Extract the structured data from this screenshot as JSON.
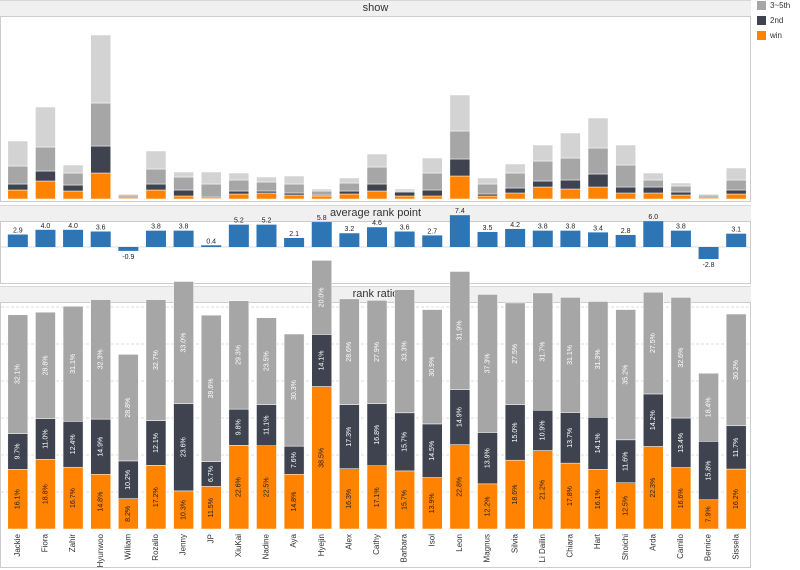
{
  "legend": {
    "items": [
      {
        "label": "3~5th",
        "color": "#a6a6a6"
      },
      {
        "label": "2nd",
        "color": "#3f4350"
      },
      {
        "label": "win",
        "color": "#ff8200"
      }
    ]
  },
  "chart_data": [
    {
      "type": "bar",
      "title": "show",
      "stacked": true,
      "ylabel": "",
      "categories": [
        "Jackie",
        "Fiora",
        "Zahir",
        "Hyunwoo",
        "William",
        "Rozalio",
        "Jenny",
        "JP",
        "XiuKai",
        "Nadine",
        "Aya",
        "Hyejin",
        "Alex",
        "Cathy",
        "Barbara",
        "Isol",
        "Leon",
        "Magnus",
        "Silvia",
        "Li Dailin",
        "Chiara",
        "Hart",
        "Shoichi",
        "Arda",
        "Camilo",
        "Bernice",
        "Sissela"
      ],
      "series": [
        {
          "name": "win",
          "color": "#ff8200",
          "values": [
            9,
            18,
            8,
            26,
            1,
            9,
            3,
            1,
            5,
            6,
            4,
            3,
            5,
            8,
            3,
            3,
            23,
            3,
            6,
            12,
            10,
            12,
            6,
            6,
            4,
            1,
            5
          ]
        },
        {
          "name": "2nd",
          "color": "#3f4350",
          "values": [
            6,
            10,
            6,
            27,
            1,
            6,
            6,
            1,
            3,
            2,
            2,
            1,
            3,
            7,
            4,
            6,
            17,
            2,
            5,
            6,
            9,
            13,
            6,
            6,
            3,
            1,
            4
          ]
        },
        {
          "name": "3~5th",
          "color": "#a6a6a6",
          "values": [
            18,
            24,
            12,
            43,
            2,
            15,
            13,
            13,
            11,
            9,
            9,
            4,
            8,
            17,
            1,
            17,
            28,
            10,
            15,
            20,
            22,
            26,
            22,
            7,
            6,
            2,
            10
          ]
        },
        {
          "name": "",
          "color": "#d3d3d3",
          "values": [
            25,
            40,
            8,
            68,
            1,
            18,
            5,
            12,
            7,
            5,
            8,
            2,
            5,
            13,
            2,
            15,
            36,
            6,
            9,
            16,
            25,
            30,
            20,
            7,
            3,
            1,
            12
          ]
        }
      ]
    },
    {
      "type": "bar",
      "title": "average rank point",
      "categories": [
        "Jackie",
        "Fiora",
        "Zahir",
        "Hyunwoo",
        "William",
        "Rozalio",
        "Jenny",
        "JP",
        "XiuKai",
        "Nadine",
        "Aya",
        "Hyejin",
        "Alex",
        "Cathy",
        "Barbara",
        "Isol",
        "Leon",
        "Magnus",
        "Silvia",
        "Li Dailin",
        "Chiara",
        "Hart",
        "Shoichi",
        "Arda",
        "Camilo",
        "Bernice",
        "Sissela"
      ],
      "values": [
        2.9,
        4.0,
        4.0,
        3.6,
        -0.9,
        3.8,
        3.8,
        0.4,
        5.2,
        5.2,
        2.1,
        5.8,
        3.2,
        4.6,
        3.6,
        2.7,
        7.4,
        3.5,
        4.2,
        3.8,
        3.8,
        3.4,
        2.8,
        6.0,
        3.8,
        -2.8,
        3.1
      ],
      "labels": [
        "2.9",
        "4.0",
        "4.0",
        "3.6",
        "-0.9",
        "3.8",
        "3.8",
        "0.4",
        "5.2",
        "5.2",
        "2.1",
        "5.8",
        "3.2",
        "4.6",
        "3.6",
        "2.7",
        "7.4",
        "3.5",
        "4.2",
        "3.8",
        "3.8",
        "3.4",
        "2.8",
        "6.0",
        "3.8",
        "-2.8",
        "3.1"
      ],
      "color": "#2e75b6"
    },
    {
      "type": "bar",
      "title": "rank ratio",
      "stacked": true,
      "categories": [
        "Jackie",
        "Fiora",
        "Zahir",
        "Hyunwoo",
        "William",
        "Rozalio",
        "Jenny",
        "JP",
        "XiuKai",
        "Nadine",
        "Aya",
        "Hyejin",
        "Alex",
        "Cathy",
        "Barbara",
        "Isol",
        "Leon",
        "Magnus",
        "Silvia",
        "Li Dailin",
        "Chiara",
        "Hart",
        "Shoichi",
        "Arda",
        "Camilo",
        "Bernice",
        "Sissela"
      ],
      "series": [
        {
          "name": "win",
          "color": "#ff8200",
          "values": [
            16.1,
            18.8,
            16.7,
            14.8,
            8.2,
            17.2,
            10.3,
            11.5,
            22.6,
            22.5,
            14.8,
            38.5,
            16.3,
            17.1,
            15.7,
            13.9,
            22.8,
            12.2,
            18.6,
            21.2,
            17.8,
            16.1,
            12.5,
            22.3,
            16.6,
            7.9,
            16.2
          ],
          "labels": [
            "16.1%",
            "18.8%",
            "16.7%",
            "14.8%",
            "8.2%",
            "17.2%",
            "10.3%",
            "11.5%",
            "22.6%",
            "22.5%",
            "14.8%",
            "38.5%",
            "16.3%",
            "17.1%",
            "15.7%",
            "13.9%",
            "22.8%",
            "12.2%",
            "18.6%",
            "21.2%",
            "17.8%",
            "16.1%",
            "12.5%",
            "22.3%",
            "16.6%",
            "7.9%",
            "16.2%"
          ]
        },
        {
          "name": "2nd",
          "color": "#3f4350",
          "values": [
            9.7,
            11.0,
            12.4,
            14.9,
            10.2,
            12.1,
            23.6,
            6.7,
            9.8,
            11.1,
            7.6,
            14.1,
            17.3,
            16.8,
            15.7,
            14.5,
            14.9,
            13.9,
            15.0,
            10.9,
            13.7,
            14.1,
            11.6,
            14.2,
            13.4,
            15.8,
            11.7
          ],
          "labels": [
            "9.7%",
            "11.0%",
            "12.4%",
            "14.9%",
            "10.2%",
            "12.1%",
            "23.6%",
            "6.7%",
            "9.8%",
            "11.1%",
            "7.6%",
            "14.1%",
            "17.3%",
            "16.8%",
            "15.7%",
            "14.5%",
            "14.9%",
            "13.9%",
            "15.0%",
            "10.9%",
            "13.7%",
            "14.1%",
            "11.6%",
            "14.2%",
            "13.4%",
            "15.8%",
            "11.7%"
          ]
        },
        {
          "name": "3~5th",
          "color": "#a6a6a6",
          "values": [
            32.1,
            28.8,
            31.1,
            32.3,
            28.8,
            32.7,
            33.0,
            39.6,
            29.3,
            23.5,
            30.3,
            20.0,
            28.6,
            27.9,
            33.3,
            30.9,
            31.9,
            37.3,
            27.5,
            31.7,
            31.1,
            31.3,
            35.2,
            27.5,
            32.6,
            18.4,
            30.2
          ],
          "labels": [
            "32.1%",
            "28.8%",
            "31.1%",
            "32.3%",
            "28.8%",
            "32.7%",
            "33.0%",
            "39.6%",
            "29.3%",
            "23.5%",
            "30.3%",
            "20.0%",
            "28.6%",
            "27.9%",
            "33.3%",
            "30.9%",
            "31.9%",
            "37.3%",
            "27.5%",
            "31.7%",
            "31.1%",
            "31.3%",
            "35.2%",
            "27.5%",
            "32.6%",
            "18.4%",
            "30.2%"
          ]
        }
      ]
    }
  ]
}
